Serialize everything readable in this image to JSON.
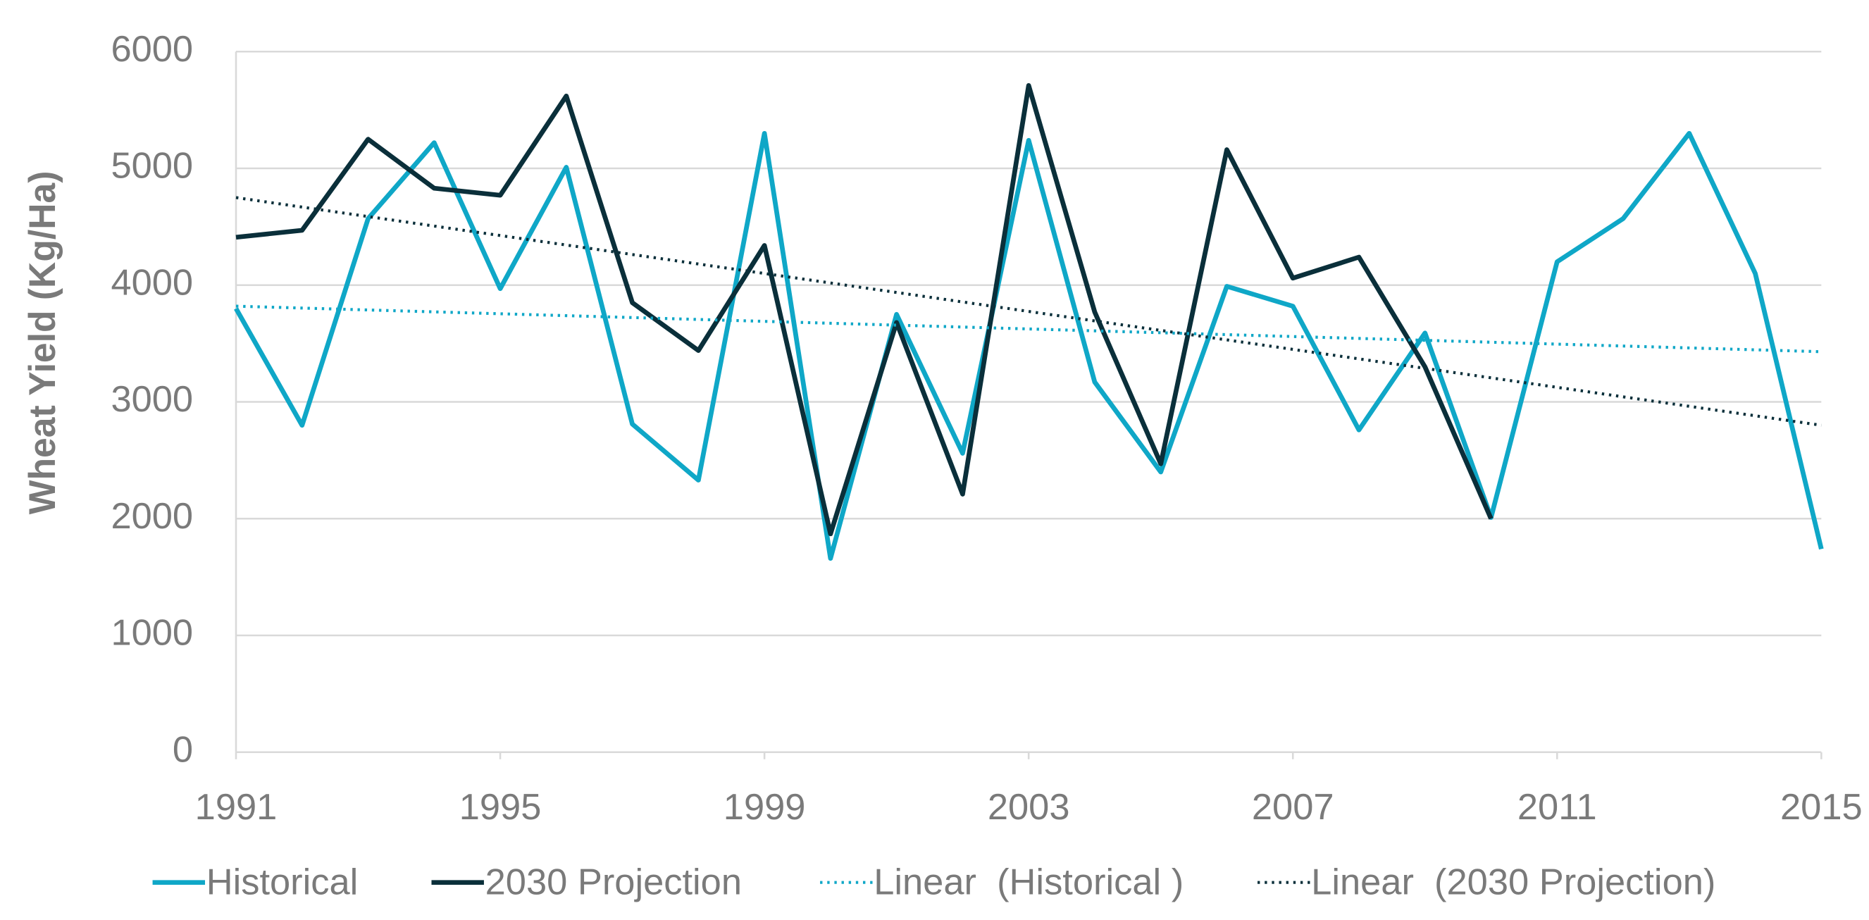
{
  "chart_data": {
    "type": "line",
    "y_label": "Wheat Yield (Kg/Ha)",
    "x": [
      1991,
      1992,
      1993,
      1994,
      1995,
      1996,
      1997,
      1998,
      1999,
      2000,
      2001,
      2002,
      2003,
      2004,
      2005,
      2006,
      2007,
      2008,
      2009,
      2010,
      2011,
      2012,
      2013,
      2014,
      2015
    ],
    "series": [
      {
        "name": "Historical",
        "color": "#0fa7c7",
        "style": "solid",
        "values": [
          3800,
          2800,
          4570,
          5220,
          3970,
          5010,
          2810,
          2330,
          5300,
          1660,
          3750,
          2560,
          5240,
          3170,
          2400,
          3990,
          3820,
          2760,
          3590,
          2010,
          4200,
          4570,
          5300,
          4100,
          1740
        ]
      },
      {
        "name": "2030 Projection",
        "color": "#0a2f3a",
        "style": "solid",
        "values": [
          4410,
          4470,
          5250,
          4830,
          4770,
          5620,
          3850,
          3440,
          4340,
          1870,
          3680,
          2210,
          5710,
          3770,
          2470,
          5160,
          4060,
          4240,
          3300,
          2000,
          null,
          null,
          null,
          null,
          null
        ]
      },
      {
        "name": "Linear  (Historical )",
        "color": "#0fa7c7",
        "style": "dotted",
        "x": [
          1991,
          2015
        ],
        "values": [
          3820,
          3430
        ]
      },
      {
        "name": "Linear  (2030 Projection)",
        "color": "#0a2f3a",
        "style": "dotted",
        "x": [
          1991,
          2015
        ],
        "values": [
          4750,
          2800
        ]
      }
    ],
    "xlim": [
      1991,
      2015
    ],
    "xticks": [
      1991,
      1995,
      1999,
      2003,
      2007,
      2011,
      2015
    ],
    "ylim": [
      0,
      6000
    ],
    "yticks": [
      0,
      1000,
      2000,
      3000,
      4000,
      5000,
      6000
    ],
    "grid": true,
    "legend": "bottom"
  }
}
